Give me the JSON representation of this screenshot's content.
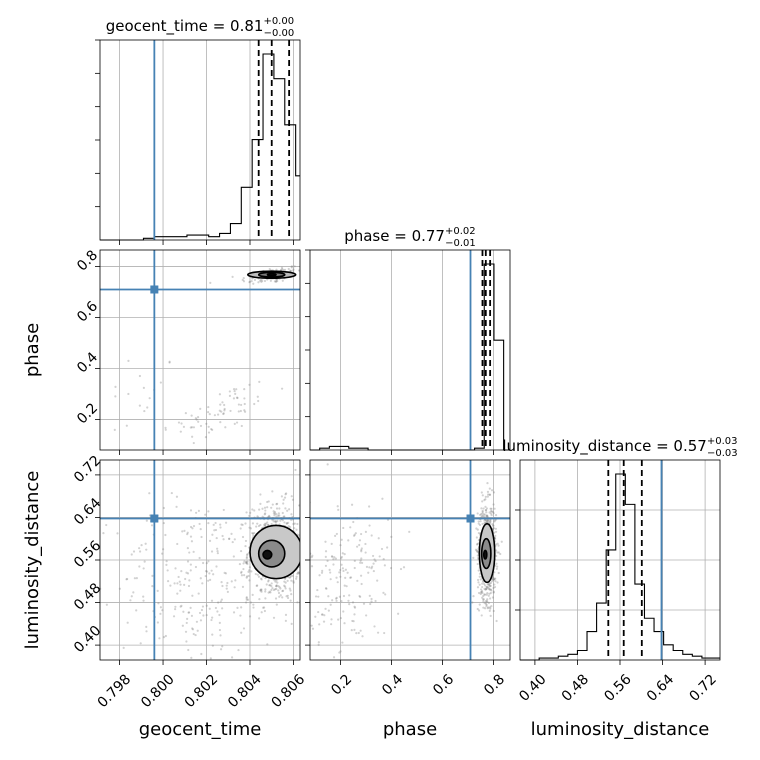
{
  "chart_data": {
    "type": "corner",
    "parameters": [
      "geocent_time",
      "phase",
      "luminosity_distance"
    ],
    "axis_labels": {
      "geocent_time": "geocent_time",
      "phase": "phase",
      "luminosity_distance": "luminosity_distance"
    },
    "ranges": {
      "geocent_time": [
        0.7971,
        0.8063
      ],
      "phase": [
        0.08,
        0.865
      ],
      "luminosity_distance": [
        0.372,
        0.748
      ]
    },
    "ticks": {
      "geocent_time": [
        {
          "v": 0.798,
          "t": "0.798"
        },
        {
          "v": 0.8,
          "t": "0.800"
        },
        {
          "v": 0.802,
          "t": "0.802"
        },
        {
          "v": 0.804,
          "t": "0.804"
        },
        {
          "v": 0.806,
          "t": "0.806"
        }
      ],
      "phase": [
        {
          "v": 0.2,
          "t": "0.2"
        },
        {
          "v": 0.4,
          "t": "0.4"
        },
        {
          "v": 0.6,
          "t": "0.6"
        },
        {
          "v": 0.8,
          "t": "0.8"
        }
      ],
      "luminosity_distance": [
        {
          "v": 0.4,
          "t": "0.40"
        },
        {
          "v": 0.48,
          "t": "0.48"
        },
        {
          "v": 0.56,
          "t": "0.56"
        },
        {
          "v": 0.64,
          "t": "0.64"
        },
        {
          "v": 0.72,
          "t": "0.72"
        }
      ]
    },
    "truths": {
      "geocent_time": 0.7996,
      "phase": 0.71,
      "luminosity_distance": 0.638
    },
    "titles": [
      {
        "param": "geocent_time",
        "name": "geocent_time",
        "median": "0.81",
        "plus": "+0.00",
        "minus": "−0.00"
      },
      {
        "param": "phase",
        "name": "phase",
        "median": "0.77",
        "plus": "+0.02",
        "minus": "−0.01"
      },
      {
        "param": "luminosity_distance",
        "name": "luminosity_distance",
        "median": "0.57",
        "plus": "+0.03",
        "minus": "−0.03"
      }
    ],
    "quantiles": {
      "geocent_time": [
        0.8044,
        0.805,
        0.8058
      ],
      "phase": [
        0.757,
        0.77,
        0.787
      ],
      "luminosity_distance": [
        0.538,
        0.567,
        0.601
      ]
    },
    "histograms": {
      "geocent_time": {
        "edges": [
          0.7971,
          0.7976,
          0.7981,
          0.7986,
          0.7991,
          0.7996,
          0.8001,
          0.8006,
          0.8011,
          0.8016,
          0.8021,
          0.8026,
          0.8031,
          0.8036,
          0.8041,
          0.8046,
          0.8051,
          0.8056,
          0.8061,
          0.8063
        ],
        "counts": [
          0,
          0,
          0,
          0,
          1,
          2,
          2,
          2,
          3,
          3,
          2,
          4,
          10,
          32,
          61,
          113,
          98,
          70,
          39
        ]
      },
      "phase": {
        "edges": [
          0.08,
          0.118,
          0.156,
          0.194,
          0.232,
          0.27,
          0.308,
          0.346,
          0.384,
          0.422,
          0.46,
          0.498,
          0.536,
          0.574,
          0.612,
          0.65,
          0.688,
          0.726,
          0.764,
          0.802,
          0.84,
          0.865
        ],
        "counts": [
          0,
          1,
          2,
          2,
          1,
          1,
          0,
          0,
          0,
          0,
          0,
          0,
          0,
          0,
          0,
          0,
          0,
          1,
          105,
          62,
          0
        ]
      },
      "luminosity_distance": {
        "edges": [
          0.372,
          0.39,
          0.408,
          0.426,
          0.444,
          0.462,
          0.48,
          0.498,
          0.516,
          0.534,
          0.552,
          0.57,
          0.588,
          0.606,
          0.624,
          0.642,
          0.66,
          0.678,
          0.696,
          0.714,
          0.732,
          0.748
        ],
        "counts": [
          0,
          0,
          1,
          1,
          2,
          3,
          5,
          15,
          30,
          58,
          98,
          82,
          40,
          22,
          15,
          8,
          5,
          3,
          2,
          1,
          1
        ]
      }
    },
    "scatter": {
      "phase_vs_geocent_time": {
        "clusters": [
          {
            "cx": 0.805,
            "cy": 0.765,
            "sx": 0.0007,
            "sy": 0.018,
            "n": 110,
            "rho": 0.5
          },
          {
            "cx": 0.8027,
            "cy": 0.23,
            "sx": 0.0012,
            "sy": 0.06,
            "n": 70,
            "rho": 0.6
          },
          {
            "cx": 0.799,
            "cy": 0.3,
            "sx": 0.0008,
            "sy": 0.1,
            "n": 18,
            "rho": 0.0
          }
        ],
        "contours": [
          {
            "cx": 0.805,
            "cy": 0.768,
            "rx": 0.0011,
            "ry": 0.014,
            "fill": "#bdbdbd"
          },
          {
            "cx": 0.805,
            "cy": 0.768,
            "rx": 0.0006,
            "ry": 0.009,
            "fill": "#7a7a7a"
          },
          {
            "cx": 0.805,
            "cy": 0.768,
            "rx": 0.0002,
            "ry": 0.004,
            "fill": "#101010"
          }
        ]
      },
      "luminosity_distance_vs_geocent_time": {
        "clusters": [
          {
            "cx": 0.8051,
            "cy": 0.575,
            "sx": 0.0006,
            "sy": 0.045,
            "n": 700,
            "rho": 0.0
          },
          {
            "cx": 0.8015,
            "cy": 0.52,
            "sx": 0.0018,
            "sy": 0.08,
            "n": 240,
            "rho": 0.0
          }
        ],
        "contours": [
          {
            "cx": 0.8052,
            "cy": 0.575,
            "rx": 0.0012,
            "ry": 0.05,
            "fill": "#c8c8c8"
          },
          {
            "cx": 0.805,
            "cy": 0.572,
            "rx": 0.0006,
            "ry": 0.025,
            "fill": "#8a8a8a"
          },
          {
            "cx": 0.8048,
            "cy": 0.57,
            "rx": 0.0002,
            "ry": 0.008,
            "fill": "#101010"
          }
        ]
      },
      "luminosity_distance_vs_phase": {
        "clusters": [
          {
            "cx": 0.775,
            "cy": 0.575,
            "sx": 0.018,
            "sy": 0.045,
            "n": 700,
            "rho": 0.0
          },
          {
            "cx": 0.24,
            "cy": 0.52,
            "sx": 0.08,
            "sy": 0.08,
            "n": 180,
            "rho": 0.0
          }
        ],
        "contours": [
          {
            "cx": 0.775,
            "cy": 0.573,
            "rx": 0.03,
            "ry": 0.055,
            "fill": "#c8c8c8"
          },
          {
            "cx": 0.772,
            "cy": 0.572,
            "rx": 0.018,
            "ry": 0.028,
            "fill": "#8a8a8a"
          },
          {
            "cx": 0.768,
            "cy": 0.57,
            "rx": 0.006,
            "ry": 0.008,
            "fill": "#101010"
          }
        ]
      }
    },
    "colors": {
      "truth": "#4682b4",
      "scatter": "#7f7f7f",
      "hist": "#000000",
      "grid": "#b0b0b0"
    }
  }
}
